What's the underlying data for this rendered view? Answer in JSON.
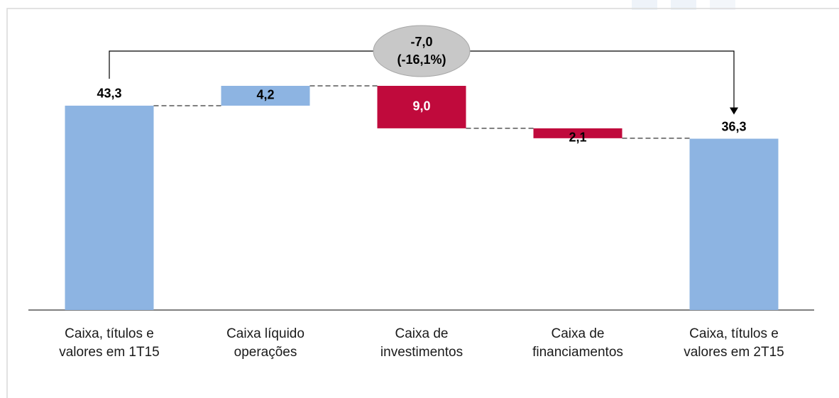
{
  "chart_data": {
    "type": "waterfall",
    "categories": [
      "Caixa, títulos e\nvalores em 1T15",
      "Caixa líquido\noperações",
      "Caixa de\ninvestimentos",
      "Caixa de\nfinanciamentos",
      "Caixa, títulos e\nvalores em 2T15"
    ],
    "values": [
      43.3,
      4.2,
      -9.0,
      -2.1,
      36.3
    ],
    "value_labels": [
      "43,3",
      "4,2",
      "9,0",
      "2,1",
      "36,3"
    ],
    "measure": [
      "total",
      "relative",
      "relative",
      "relative",
      "total"
    ],
    "colors": {
      "total": "#8db4e2",
      "increase": "#8db4e2",
      "decrease": "#c00a3c"
    },
    "annotation": {
      "lines": [
        "-7,0",
        "(-16,1%)"
      ]
    }
  }
}
